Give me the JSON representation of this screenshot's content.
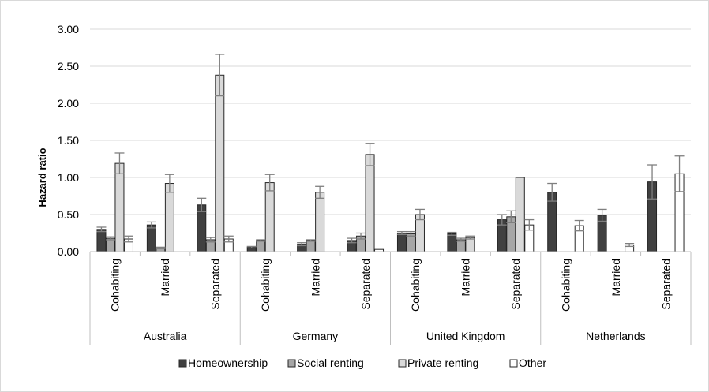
{
  "chart_data": {
    "type": "bar",
    "title": "",
    "ylabel": "Hazard ratio",
    "ylim": [
      0,
      3
    ],
    "yticks": [
      "0.00",
      "0.50",
      "1.00",
      "1.50",
      "2.00",
      "2.50",
      "3.00"
    ],
    "grid": true,
    "legend_position": "bottom",
    "groups": [
      "Australia",
      "Germany",
      "United Kingdom",
      "Netherlands"
    ],
    "subcategories": [
      "Cohabiting",
      "Married",
      "Separated"
    ],
    "colors": {
      "Homeownership": "#404040",
      "Social renting": "#a6a6a6",
      "Private renting": "#d9d9d9",
      "Other": "#ffffff"
    },
    "series": [
      {
        "name": "Homeownership",
        "values": [
          0.3,
          0.36,
          0.63,
          0.06,
          0.1,
          0.15,
          0.25,
          0.24,
          0.43,
          0.8,
          0.49,
          0.94
        ],
        "err": [
          0.03,
          0.04,
          0.09,
          0.01,
          0.02,
          0.03,
          0.02,
          0.02,
          0.07,
          0.12,
          0.08,
          0.23
        ]
      },
      {
        "name": "Social renting",
        "values": [
          0.18,
          0.05,
          0.16,
          0.15,
          0.15,
          0.21,
          0.24,
          0.16,
          0.47,
          null,
          null,
          null
        ],
        "err": [
          0.02,
          0.01,
          0.03,
          0.01,
          0.01,
          0.04,
          0.03,
          0.02,
          0.08,
          null,
          null,
          null
        ]
      },
      {
        "name": "Private renting",
        "values": [
          1.19,
          0.92,
          2.38,
          0.93,
          0.8,
          1.31,
          0.5,
          0.19,
          1.0,
          null,
          null,
          null
        ],
        "err": [
          0.14,
          0.12,
          0.28,
          0.11,
          0.08,
          0.15,
          0.07,
          0.02,
          0.0,
          null,
          null,
          null
        ]
      },
      {
        "name": "Other",
        "values": [
          0.17,
          null,
          0.17,
          null,
          null,
          0.03,
          null,
          null,
          0.36,
          0.35,
          0.09,
          1.05
        ],
        "err": [
          0.04,
          null,
          0.04,
          null,
          null,
          0.0,
          null,
          null,
          0.07,
          0.07,
          0.02,
          0.24
        ]
      }
    ]
  }
}
